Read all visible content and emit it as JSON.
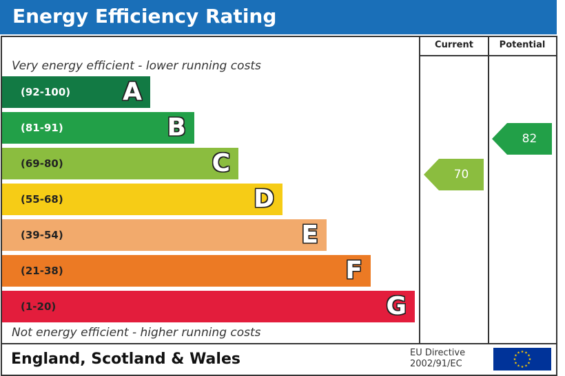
{
  "title": "Energy Efficiency Rating",
  "columns": {
    "current": "Current",
    "potential": "Potential"
  },
  "top_caption": "Very energy efficient - lower running costs",
  "bottom_caption": "Not energy efficient - higher running costs",
  "region": "England, Scotland & Wales",
  "directive_line1": "EU Directive",
  "directive_line2": "2002/91/EC",
  "chart_data": {
    "type": "bar",
    "categories": [
      "A",
      "B",
      "C",
      "D",
      "E",
      "F",
      "G"
    ],
    "ranges": [
      "(92-100)",
      "(81-91)",
      "(69-80)",
      "(55-68)",
      "(39-54)",
      "(21-38)",
      "(1-20)"
    ],
    "band_colors": [
      "#127a44",
      "#22a048",
      "#8bbd3f",
      "#f6cc16",
      "#f2aa6c",
      "#ec7a24",
      "#e31d3c"
    ],
    "range_text_colors": [
      "#ffffff",
      "#ffffff",
      "#222222",
      "#222222",
      "#222222",
      "#222222",
      "#222222"
    ],
    "current": {
      "value": 70,
      "band": "C",
      "color": "#8bbd3f"
    },
    "potential": {
      "value": 82,
      "band": "B",
      "color": "#22a048"
    }
  }
}
